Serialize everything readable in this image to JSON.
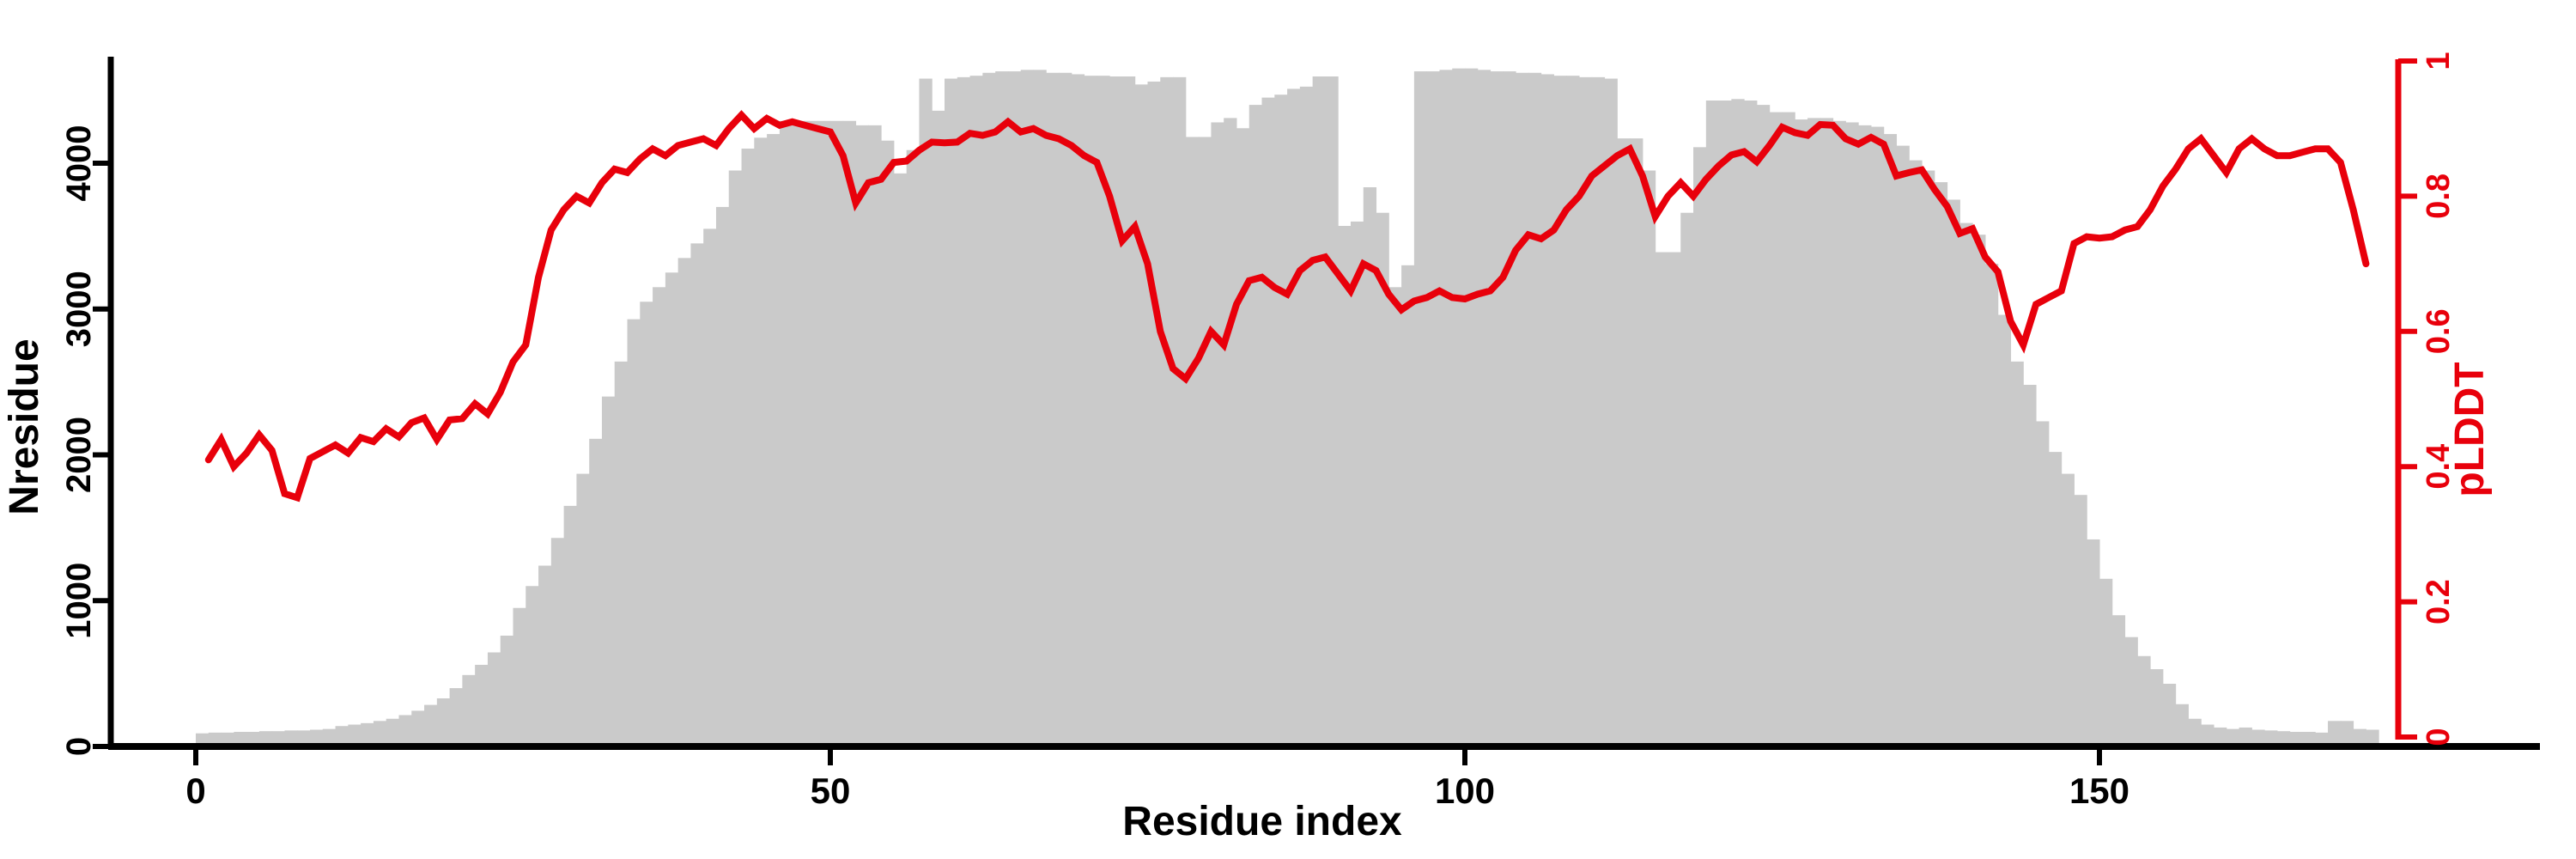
{
  "chart_data": {
    "type": "bar",
    "subtype": "dual-axis bar+line",
    "title": "",
    "xlabel": "Residue index",
    "ylabel_left": "Nresidue",
    "ylabel_right": "pLDDT",
    "grid": false,
    "legend": null,
    "x_ticks": [
      0,
      50,
      100,
      150
    ],
    "left_axis": {
      "ticks": [
        0,
        1000,
        2000,
        3000,
        4000
      ],
      "ylim": [
        0,
        4700
      ]
    },
    "right_axis": {
      "ticks": [
        "0",
        "0.2",
        "0.4",
        "0.6",
        "0.8",
        "1"
      ],
      "ylim": [
        0,
        1
      ]
    },
    "xlim": [
      0,
      172
    ],
    "colors": {
      "bar": "#cacaca",
      "line": "#e8000b",
      "axis": "#000000"
    },
    "series": [
      {
        "name": "Nresidue",
        "type": "bar",
        "x_start": 0,
        "values": [
          90,
          95,
          95,
          100,
          100,
          105,
          105,
          110,
          110,
          115,
          120,
          140,
          150,
          160,
          175,
          190,
          215,
          245,
          285,
          330,
          400,
          490,
          560,
          645,
          760,
          950,
          1100,
          1240,
          1430,
          1650,
          1870,
          2110,
          2400,
          2640,
          2930,
          3050,
          3150,
          3250,
          3350,
          3450,
          3550,
          3700,
          3950,
          4100,
          4175,
          4200,
          4290,
          4290,
          4290,
          4290,
          4290,
          4290,
          4260,
          4260,
          4155,
          3930,
          4090,
          4580,
          4360,
          4580,
          4590,
          4600,
          4620,
          4630,
          4630,
          4640,
          4640,
          4620,
          4620,
          4610,
          4600,
          4600,
          4595,
          4595,
          4540,
          4560,
          4590,
          4590,
          4180,
          4180,
          4280,
          4310,
          4240,
          4400,
          4450,
          4470,
          4510,
          4525,
          4595,
          4595,
          3570,
          3600,
          3835,
          3660,
          3150,
          3300,
          4630,
          4630,
          4640,
          4650,
          4650,
          4640,
          4630,
          4630,
          4620,
          4620,
          4610,
          4600,
          4600,
          4590,
          4590,
          4580,
          4170,
          4170,
          3950,
          3390,
          3390,
          3660,
          4110,
          4430,
          4430,
          4440,
          4430,
          4400,
          4350,
          4350,
          4300,
          4310,
          4310,
          4290,
          4280,
          4260,
          4250,
          4200,
          4120,
          4020,
          3950,
          3870,
          3750,
          3590,
          3510,
          3310,
          2960,
          2640,
          2480,
          2230,
          2020,
          1870,
          1725,
          1420,
          1150,
          900,
          750,
          620,
          530,
          430,
          290,
          190,
          150,
          130,
          120,
          130,
          115,
          110,
          105,
          100,
          100,
          95,
          175,
          175,
          120,
          115
        ]
      },
      {
        "name": "pLDDT",
        "type": "line",
        "x_start": 1,
        "values": [
          0.41,
          0.44,
          0.4,
          0.42,
          0.447,
          0.424,
          0.36,
          0.354,
          0.412,
          0.422,
          0.432,
          0.42,
          0.443,
          0.437,
          0.456,
          0.444,
          0.465,
          0.472,
          0.44,
          0.469,
          0.471,
          0.493,
          0.478,
          0.51,
          0.555,
          0.58,
          0.68,
          0.75,
          0.78,
          0.8,
          0.79,
          0.82,
          0.84,
          0.835,
          0.855,
          0.87,
          0.86,
          0.875,
          0.88,
          0.885,
          0.875,
          0.9,
          0.92,
          0.9,
          0.915,
          0.905,
          0.91,
          0.905,
          0.9,
          0.895,
          0.86,
          0.79,
          0.82,
          0.825,
          0.85,
          0.852,
          0.868,
          0.88,
          0.879,
          0.88,
          0.893,
          0.89,
          0.895,
          0.91,
          0.895,
          0.9,
          0.89,
          0.885,
          0.875,
          0.86,
          0.85,
          0.8,
          0.734,
          0.755,
          0.7,
          0.6,
          0.545,
          0.53,
          0.56,
          0.6,
          0.58,
          0.64,
          0.675,
          0.68,
          0.665,
          0.655,
          0.69,
          0.705,
          0.71,
          0.685,
          0.66,
          0.7,
          0.69,
          0.655,
          0.632,
          0.645,
          0.65,
          0.66,
          0.65,
          0.648,
          0.655,
          0.66,
          0.68,
          0.72,
          0.743,
          0.737,
          0.75,
          0.78,
          0.8,
          0.83,
          0.845,
          0.86,
          0.87,
          0.83,
          0.77,
          0.8,
          0.82,
          0.8,
          0.825,
          0.845,
          0.861,
          0.866,
          0.851,
          0.875,
          0.902,
          0.894,
          0.89,
          0.906,
          0.905,
          0.885,
          0.877,
          0.887,
          0.877,
          0.83,
          0.835,
          0.839,
          0.81,
          0.785,
          0.745,
          0.752,
          0.71,
          0.688,
          0.615,
          0.58,
          0.64,
          0.65,
          0.66,
          0.73,
          0.74,
          0.738,
          0.74,
          0.75,
          0.755,
          0.78,
          0.815,
          0.84,
          0.87,
          0.885,
          0.86,
          0.835,
          0.87,
          0.885,
          0.87,
          0.86,
          0.86,
          0.865,
          0.87,
          0.87,
          0.85,
          0.78,
          0.7
        ]
      }
    ]
  }
}
